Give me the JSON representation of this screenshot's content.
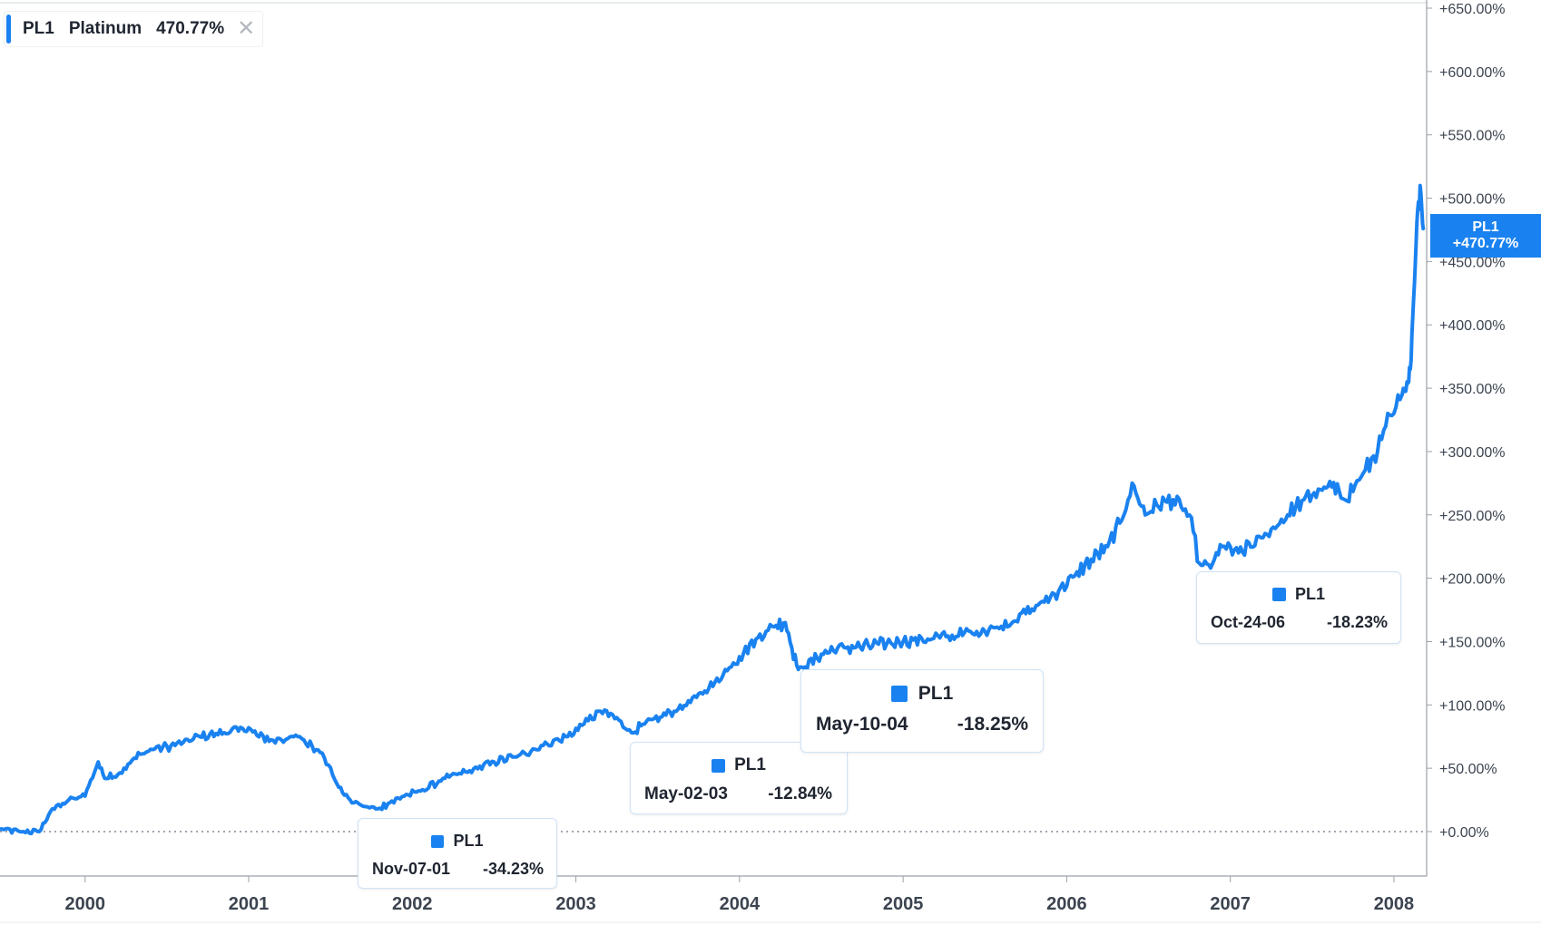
{
  "legend": {
    "symbol": "PL1",
    "name": "Platinum",
    "value": "470.77%"
  },
  "last_badge": {
    "symbol": "PL1",
    "value": "+470.77%"
  },
  "colors": {
    "series": "#1a82f0",
    "axis": "#3c4450",
    "background": "#ffffff"
  },
  "chart_data": {
    "type": "line",
    "title": "",
    "xlabel": "",
    "ylabel": "",
    "x_tick_labels": [
      "2000",
      "2001",
      "2002",
      "2003",
      "2004",
      "2005",
      "2006",
      "2007",
      "2008"
    ],
    "x_tick_years": [
      2000,
      2001,
      2002,
      2003,
      2004,
      2005,
      2006,
      2007,
      2008
    ],
    "y_tick_labels": [
      "+0.00%",
      "+50.00%",
      "+100.00%",
      "+150.00%",
      "+200.00%",
      "+250.00%",
      "+300.00%",
      "+350.00%",
      "+400.00%",
      "+450.00%",
      "+500.00%",
      "+550.00%",
      "+600.00%",
      "+650.00%"
    ],
    "y_tick_values": [
      0,
      50,
      100,
      150,
      200,
      250,
      300,
      350,
      400,
      450,
      500,
      550,
      600,
      650
    ],
    "xlim": [
      1999.48,
      2008.2
    ],
    "ylim": [
      -35,
      650
    ],
    "zero_line": true,
    "series": [
      {
        "name": "PL1",
        "x": [
          1999.48,
          1999.6,
          1999.72,
          1999.8,
          1999.9,
          2000.0,
          2000.08,
          2000.12,
          2000.2,
          2000.3,
          2000.4,
          2000.55,
          2000.7,
          2000.85,
          2001.0,
          2001.05,
          2001.15,
          2001.3,
          2001.45,
          2001.55,
          2001.62,
          2001.7,
          2001.79,
          2001.85,
          2001.95,
          2002.05,
          2002.2,
          2002.35,
          2002.5,
          2002.65,
          2002.8,
          2002.95,
          2003.05,
          2003.15,
          2003.25,
          2003.34,
          2003.42,
          2003.55,
          2003.7,
          2003.85,
          2004.0,
          2004.1,
          2004.2,
          2004.28,
          2004.32,
          2004.36,
          2004.4,
          2004.5,
          2004.6,
          2004.7,
          2004.85,
          2005.0,
          2005.15,
          2005.3,
          2005.45,
          2005.6,
          2005.75,
          2005.9,
          2006.05,
          2006.15,
          2006.25,
          2006.35,
          2006.4,
          2006.48,
          2006.55,
          2006.65,
          2006.75,
          2006.81,
          2006.88,
          2006.95,
          2007.05,
          2007.2,
          2007.35,
          2007.45,
          2007.55,
          2007.62,
          2007.7,
          2007.8,
          2007.9,
          2007.95,
          2008.0,
          2008.05,
          2008.08,
          2008.1,
          2008.12,
          2008.14,
          2008.16,
          2008.18
        ],
        "values": [
          2,
          0,
          0,
          18,
          25,
          28,
          55,
          42,
          45,
          58,
          65,
          68,
          75,
          78,
          82,
          76,
          72,
          75,
          62,
          35,
          25,
          20,
          18,
          22,
          28,
          32,
          42,
          48,
          55,
          60,
          68,
          75,
          85,
          95,
          90,
          78,
          85,
          92,
          102,
          118,
          138,
          152,
          162,
          165,
          145,
          128,
          130,
          140,
          145,
          145,
          148,
          150,
          152,
          155,
          158,
          162,
          172,
          185,
          202,
          215,
          225,
          250,
          275,
          250,
          258,
          262,
          250,
          212,
          208,
          225,
          220,
          232,
          250,
          262,
          270,
          272,
          262,
          280,
          300,
          320,
          330,
          345,
          355,
          365,
          420,
          480,
          510,
          475
        ],
        "annotations": [
          {
            "date": "Nov-07-01",
            "value_label": "-34.23%"
          },
          {
            "date": "May-02-03",
            "value_label": "-12.84%"
          },
          {
            "date": "May-10-04",
            "value_label": "-18.25%"
          },
          {
            "date": "Oct-24-06",
            "value_label": "-18.23%"
          }
        ]
      }
    ]
  }
}
